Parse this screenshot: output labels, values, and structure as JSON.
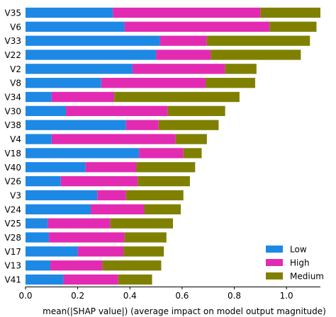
{
  "chart_data": {
    "type": "bar",
    "orientation": "horizontal",
    "stacked": true,
    "categories": [
      "V35",
      "V6",
      "V33",
      "V22",
      "V2",
      "V8",
      "V34",
      "V30",
      "V38",
      "V4",
      "V18",
      "V40",
      "V26",
      "V3",
      "V24",
      "V25",
      "V28",
      "V17",
      "V13",
      "V41"
    ],
    "series": [
      {
        "name": "Low",
        "color": "#1E88E5",
        "values": [
          0.335,
          0.38,
          0.515,
          0.5,
          0.41,
          0.29,
          0.1,
          0.155,
          0.385,
          0.1,
          0.435,
          0.23,
          0.135,
          0.275,
          0.25,
          0.085,
          0.09,
          0.2,
          0.095,
          0.145
        ]
      },
      {
        "name": "High",
        "color": "#E22BB2",
        "values": [
          0.565,
          0.555,
          0.18,
          0.21,
          0.355,
          0.4,
          0.24,
          0.39,
          0.125,
          0.475,
          0.17,
          0.195,
          0.295,
          0.11,
          0.205,
          0.24,
          0.29,
          0.175,
          0.2,
          0.21
        ]
      },
      {
        "name": "Medium",
        "color": "#808000",
        "values": [
          0.23,
          0.18,
          0.395,
          0.345,
          0.12,
          0.19,
          0.48,
          0.22,
          0.23,
          0.12,
          0.07,
          0.225,
          0.2,
          0.22,
          0.14,
          0.24,
          0.16,
          0.155,
          0.225,
          0.13
        ]
      }
    ],
    "xlabel": "mean(|SHAP value|) (average impact on model output magnitude)",
    "ylabel": "",
    "xlim": [
      0,
      1.13
    ],
    "xticks": [
      "0.0",
      "0.2",
      "0.4",
      "0.6",
      "0.8",
      "1.0"
    ],
    "legend": {
      "placement": "bottom-right",
      "entries": [
        "Low",
        "High",
        "Medium"
      ]
    },
    "grid": false
  }
}
